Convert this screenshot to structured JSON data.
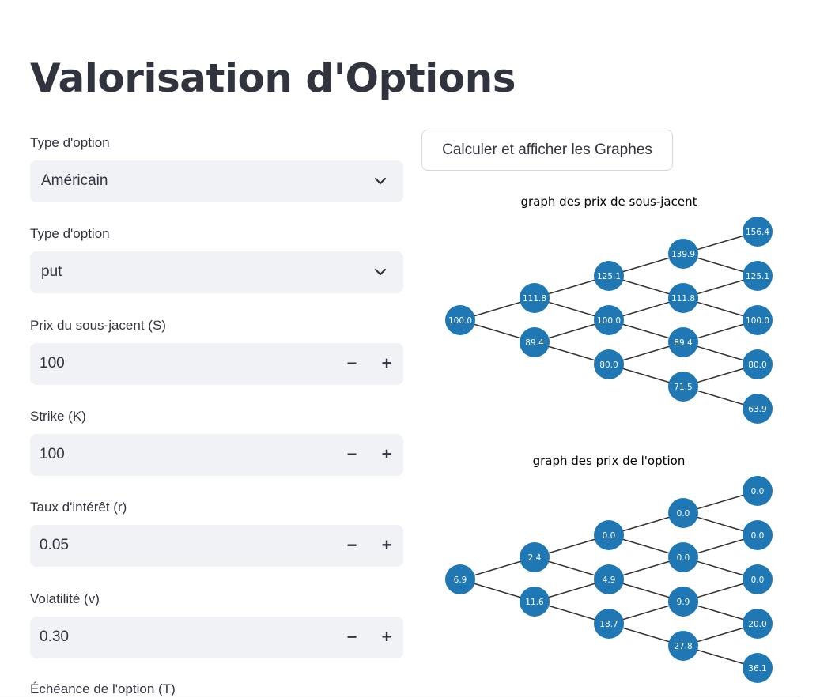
{
  "title": "Valorisation d'Options",
  "fields": [
    {
      "label": "Type d'option",
      "kind": "select",
      "value": "Américain"
    },
    {
      "label": "Type d'option",
      "kind": "select",
      "value": "put"
    },
    {
      "label": "Prix du sous-jacent (S)",
      "kind": "number",
      "value": "100"
    },
    {
      "label": "Strike (K)",
      "kind": "number",
      "value": "100"
    },
    {
      "label": "Taux d'intérêt (r)",
      "kind": "number",
      "value": "0.05"
    },
    {
      "label": "Volatilité (v)",
      "kind": "number",
      "value": "0.30"
    },
    {
      "label": "Échéance de l'option (T)",
      "kind": "number",
      "value": ""
    }
  ],
  "stepper": {
    "minus": "−",
    "plus": "+"
  },
  "button_label": "Calculer et afficher les Graphes",
  "colors": {
    "node": "#1f77b4",
    "edge": "#333333",
    "node_text": "#ffffff"
  },
  "chart_data": [
    {
      "type": "tree",
      "title": "graph des prix de sous-jacent",
      "levels": [
        [
          "100.0"
        ],
        [
          "111.8",
          "89.4"
        ],
        [
          "125.1",
          "100.0",
          "80.0"
        ],
        [
          "139.9",
          "111.8",
          "89.4",
          "71.5"
        ],
        [
          "156.4",
          "125.1",
          "100.0",
          "80.0",
          "63.9"
        ]
      ]
    },
    {
      "type": "tree",
      "title": "graph des prix de l'option",
      "levels": [
        [
          "6.9"
        ],
        [
          "2.4",
          "11.6"
        ],
        [
          "0.0",
          "4.9",
          "18.7"
        ],
        [
          "0.0",
          "0.0",
          "9.9",
          "27.8"
        ],
        [
          "0.0",
          "0.0",
          "0.0",
          "20.0",
          "36.1"
        ]
      ]
    }
  ]
}
